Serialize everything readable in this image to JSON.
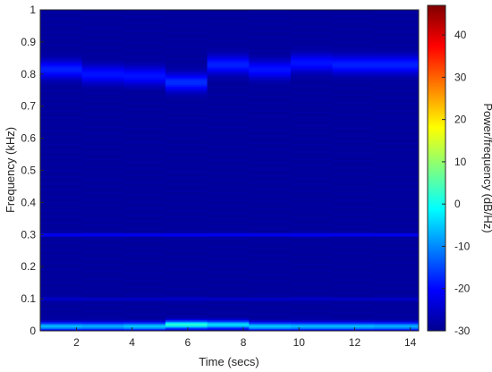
{
  "chart_data": {
    "type": "heatmap",
    "title": "",
    "xlabel": "Time (secs)",
    "ylabel": "Frequency (kHz)",
    "xlim": [
      0.7,
      14.3
    ],
    "ylim": [
      0,
      1
    ],
    "xticks": [
      2,
      4,
      6,
      8,
      10,
      12,
      14
    ],
    "yticks": [
      0,
      0.1,
      0.2,
      0.3,
      0.4,
      0.5,
      0.6,
      0.7,
      0.8,
      0.9,
      1
    ],
    "grid": false,
    "colorbar": {
      "label": "Power/frequency (dB/Hz)",
      "range": [
        -30,
        47
      ],
      "ticks": [
        -30,
        -20,
        -10,
        0,
        10,
        20,
        30,
        40
      ],
      "colormap": "jet"
    },
    "background_level_db": -28,
    "time_segments": [
      0.7,
      2.2,
      3.7,
      5.2,
      6.7,
      8.2,
      9.7,
      11.2,
      12.7,
      14.3
    ],
    "bands": [
      {
        "name": "formant",
        "center_khz": [
          0.815,
          0.8,
          0.795,
          0.775,
          0.83,
          0.815,
          0.835,
          0.83,
          0.83
        ],
        "peak_db": [
          -18,
          -19,
          -19,
          -17,
          -18,
          -19,
          -19,
          -18,
          -18
        ]
      },
      {
        "name": "low",
        "center_khz": [
          0.015,
          0.015,
          0.015,
          0.02,
          0.02,
          0.015,
          0.015,
          0.015,
          0.015
        ],
        "peak_db": [
          -6,
          -7,
          -5,
          2,
          -3,
          -5,
          -6,
          -6,
          -7
        ]
      }
    ],
    "lines": [
      {
        "frequency_khz": 0.3,
        "level_db": -22
      },
      {
        "frequency_khz": 0.1,
        "level_db": -25
      }
    ]
  }
}
